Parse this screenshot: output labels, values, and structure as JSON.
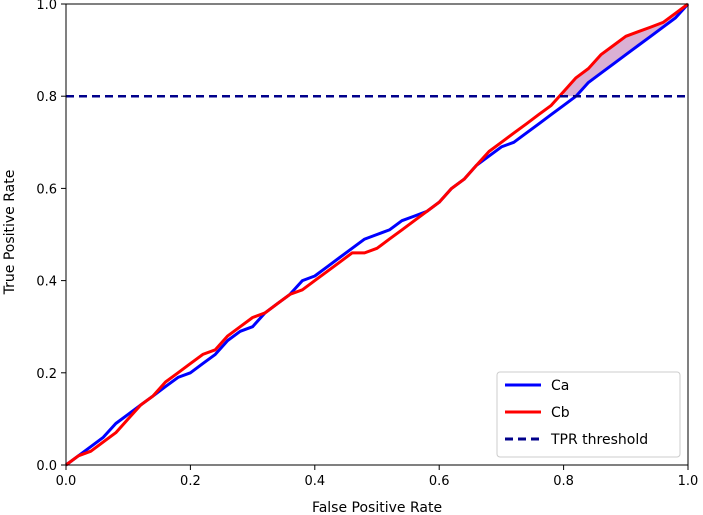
{
  "chart_data": {
    "type": "line",
    "title": "",
    "xlabel": "False Positive Rate",
    "ylabel": "True Positive Rate",
    "xlim": [
      0.0,
      1.0
    ],
    "ylim": [
      0.0,
      1.0
    ],
    "xticks": [
      "0.0",
      "0.2",
      "0.4",
      "0.6",
      "0.8",
      "1.0"
    ],
    "yticks": [
      "0.0",
      "0.2",
      "0.4",
      "0.6",
      "0.8",
      "1.0"
    ],
    "grid": false,
    "legend_position": "bottom-right",
    "threshold": {
      "name": "TPR threshold",
      "value": 0.8,
      "color": "#00008b",
      "style": "dashed"
    },
    "shade_region": {
      "above": 0.8,
      "fill": "#c27bb8"
    },
    "series": [
      {
        "name": "Ca",
        "color": "#0000ff",
        "x": [
          0,
          0.02,
          0.04,
          0.06,
          0.08,
          0.1,
          0.12,
          0.14,
          0.16,
          0.18,
          0.2,
          0.22,
          0.24,
          0.26,
          0.28,
          0.3,
          0.32,
          0.34,
          0.36,
          0.38,
          0.4,
          0.42,
          0.44,
          0.46,
          0.48,
          0.5,
          0.52,
          0.54,
          0.56,
          0.58,
          0.6,
          0.62,
          0.64,
          0.66,
          0.68,
          0.7,
          0.72,
          0.74,
          0.76,
          0.78,
          0.8,
          0.82,
          0.84,
          0.86,
          0.88,
          0.9,
          0.92,
          0.94,
          0.96,
          0.98,
          1.0
        ],
        "y": [
          0,
          0.02,
          0.04,
          0.06,
          0.09,
          0.11,
          0.13,
          0.15,
          0.17,
          0.19,
          0.2,
          0.22,
          0.24,
          0.27,
          0.29,
          0.3,
          0.33,
          0.35,
          0.37,
          0.4,
          0.41,
          0.43,
          0.45,
          0.47,
          0.49,
          0.5,
          0.51,
          0.53,
          0.54,
          0.55,
          0.57,
          0.6,
          0.62,
          0.65,
          0.67,
          0.69,
          0.7,
          0.72,
          0.74,
          0.76,
          0.78,
          0.8,
          0.83,
          0.85,
          0.87,
          0.89,
          0.91,
          0.93,
          0.95,
          0.97,
          1.0
        ]
      },
      {
        "name": "Cb",
        "color": "#ff0000",
        "x": [
          0,
          0.02,
          0.04,
          0.06,
          0.08,
          0.1,
          0.12,
          0.14,
          0.16,
          0.18,
          0.2,
          0.22,
          0.24,
          0.26,
          0.28,
          0.3,
          0.32,
          0.34,
          0.36,
          0.38,
          0.4,
          0.42,
          0.44,
          0.46,
          0.48,
          0.5,
          0.52,
          0.54,
          0.56,
          0.58,
          0.6,
          0.62,
          0.64,
          0.66,
          0.68,
          0.7,
          0.72,
          0.74,
          0.76,
          0.78,
          0.8,
          0.82,
          0.84,
          0.86,
          0.88,
          0.9,
          0.92,
          0.94,
          0.96,
          0.98,
          1.0
        ],
        "y": [
          0,
          0.02,
          0.03,
          0.05,
          0.07,
          0.1,
          0.13,
          0.15,
          0.18,
          0.2,
          0.22,
          0.24,
          0.25,
          0.28,
          0.3,
          0.32,
          0.33,
          0.35,
          0.37,
          0.38,
          0.4,
          0.42,
          0.44,
          0.46,
          0.46,
          0.47,
          0.49,
          0.51,
          0.53,
          0.55,
          0.57,
          0.6,
          0.62,
          0.65,
          0.68,
          0.7,
          0.72,
          0.74,
          0.76,
          0.78,
          0.81,
          0.84,
          0.86,
          0.89,
          0.91,
          0.93,
          0.94,
          0.95,
          0.96,
          0.98,
          1.0
        ]
      }
    ]
  }
}
